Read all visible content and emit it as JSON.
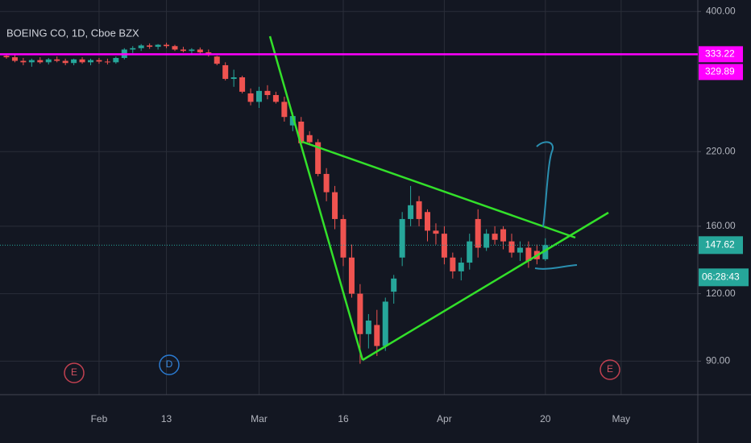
{
  "chart_data": {
    "type": "candlestick",
    "title": "BOEING CO, 1D, Cboe BZX",
    "categories": [
      null,
      null,
      null,
      null,
      null,
      null,
      null,
      null,
      null,
      null,
      null,
      "Feb",
      null,
      null,
      null,
      null,
      null,
      null,
      null,
      "13",
      null,
      null,
      null,
      null,
      null,
      null,
      null,
      null,
      null,
      null,
      "Mar",
      null,
      null,
      null,
      null,
      null,
      null,
      null,
      null,
      null,
      "16",
      null,
      null,
      null,
      null,
      null,
      null,
      null,
      null,
      null,
      null,
      null,
      "Apr",
      null,
      null,
      null,
      null,
      null,
      null,
      null,
      null,
      null,
      null,
      null,
      "20",
      null,
      null,
      null,
      null,
      null,
      null,
      null,
      null,
      "May"
    ],
    "open": [
      331,
      329,
      324,
      322,
      325,
      322,
      326,
      324,
      321,
      326,
      322,
      325,
      323,
      322,
      328,
      340,
      342,
      346,
      344,
      347,
      345,
      340,
      338,
      340,
      336,
      330,
      318,
      300,
      302,
      282,
      272,
      285,
      280,
      272,
      246,
      250,
      236,
      229,
      200,
      185,
      165,
      140,
      120,
      101,
      105,
      96,
      121,
      140,
      165,
      178,
      170,
      157,
      155,
      140,
      132,
      137,
      165,
      146,
      155,
      158,
      150,
      143,
      146,
      144,
      139,
      null,
      null,
      null,
      null,
      null,
      null,
      null,
      null,
      null
    ],
    "high": [
      334,
      332,
      328,
      327,
      329,
      328,
      330,
      327,
      327,
      329,
      327,
      328,
      327,
      330,
      342,
      345,
      348,
      349,
      348,
      350,
      347,
      344,
      342,
      343,
      340,
      331,
      322,
      312,
      304,
      288,
      290,
      292,
      284,
      278,
      260,
      255,
      240,
      232,
      205,
      190,
      168,
      148,
      125,
      110,
      112,
      118,
      130,
      170,
      190,
      182,
      172,
      162,
      160,
      143,
      140,
      155,
      172,
      158,
      160,
      160,
      155,
      150,
      150,
      148,
      152,
      null,
      null,
      null,
      null,
      null,
      null,
      null,
      null,
      null
    ],
    "low": [
      327,
      322,
      318,
      316,
      320,
      319,
      322,
      318,
      318,
      320,
      318,
      320,
      319,
      320,
      326,
      335,
      338,
      341,
      340,
      342,
      338,
      336,
      334,
      333,
      330,
      318,
      298,
      290,
      282,
      268,
      265,
      275,
      270,
      250,
      240,
      225,
      226,
      198,
      178,
      158,
      135,
      118,
      89,
      95,
      92,
      94,
      115,
      135,
      160,
      160,
      150,
      148,
      136,
      128,
      127,
      133,
      140,
      144,
      148,
      145,
      140,
      138,
      134,
      136,
      138,
      null,
      null,
      null,
      null,
      null,
      null,
      null,
      null,
      null
    ],
    "close": [
      329,
      324,
      322,
      325,
      322,
      326,
      324,
      321,
      326,
      322,
      325,
      323,
      322,
      328,
      340,
      342,
      346,
      344,
      347,
      345,
      340,
      338,
      340,
      336,
      332,
      320,
      300,
      302,
      284,
      272,
      285,
      280,
      272,
      255,
      256,
      228,
      229,
      200,
      185,
      165,
      140,
      120,
      101,
      107,
      96,
      116,
      128,
      165,
      175,
      165,
      157,
      155,
      140,
      132,
      137,
      150,
      146,
      155,
      151,
      150,
      143,
      146,
      138,
      139,
      147.62,
      null,
      null,
      null,
      null,
      null,
      null,
      null,
      null,
      null
    ],
    "up_color": "#26a69a",
    "down_color": "#ef5350",
    "log_scale": true,
    "grid": true,
    "ylim": [
      78,
      420
    ],
    "yticks": [
      {
        "value": 400,
        "label": "400.00"
      },
      {
        "value": 220,
        "label": "220.00"
      },
      {
        "value": 160,
        "label": "160.00"
      },
      {
        "value": 120,
        "label": "120.00"
      },
      {
        "value": 90,
        "label": "90.00"
      }
    ],
    "horizontal_line": 333.22,
    "previous_close": 329.89,
    "last_price": 147.62,
    "countdown": "06:28:43",
    "events": [
      "E",
      "D",
      "E"
    ]
  }
}
